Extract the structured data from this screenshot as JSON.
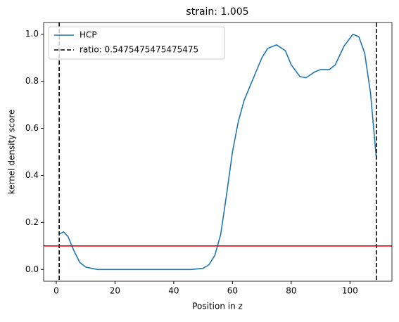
{
  "chart_data": {
    "type": "line",
    "title": "strain: 1.005",
    "x_label": "Position in z",
    "y_label": "kernel density score",
    "x": [
      1,
      2.5,
      4,
      6,
      8,
      10,
      14,
      20,
      30,
      40,
      46,
      50,
      52,
      54,
      56,
      58,
      60,
      62,
      64,
      66,
      68,
      70,
      72,
      75,
      78,
      80,
      83,
      85,
      88,
      90,
      93,
      95,
      98,
      101,
      103,
      105,
      107,
      109
    ],
    "series": [
      {
        "name": "HCP",
        "color": "#1f77b4",
        "values": [
          0.15,
          0.16,
          0.14,
          0.08,
          0.03,
          0.01,
          0.0,
          0.0,
          0.0,
          0.0,
          0.0,
          0.005,
          0.02,
          0.06,
          0.15,
          0.32,
          0.5,
          0.63,
          0.72,
          0.78,
          0.84,
          0.9,
          0.94,
          0.955,
          0.93,
          0.87,
          0.82,
          0.815,
          0.84,
          0.85,
          0.85,
          0.87,
          0.95,
          1.0,
          0.99,
          0.92,
          0.75,
          0.47
        ]
      }
    ],
    "vlines": {
      "name": "ratio: 0.5475475475475475",
      "color": "#000000",
      "values": [
        1,
        109
      ]
    },
    "hline": {
      "color": "#e00000",
      "value": 0.1
    },
    "xlim": [
      -4.3,
      114.3
    ],
    "ylim": [
      -0.05,
      1.05
    ],
    "xticks": [
      0,
      20,
      40,
      60,
      80,
      100
    ],
    "yticks": [
      {
        "value": 0,
        "label": "0.0"
      },
      {
        "value": 0.2,
        "label": "0.2"
      },
      {
        "value": 0.4,
        "label": "0.4"
      },
      {
        "value": 0.6,
        "label": "0.6"
      },
      {
        "value": 0.8,
        "label": "0.8"
      },
      {
        "value": 1.0,
        "label": "1.0"
      }
    ],
    "legend": "upper left"
  }
}
